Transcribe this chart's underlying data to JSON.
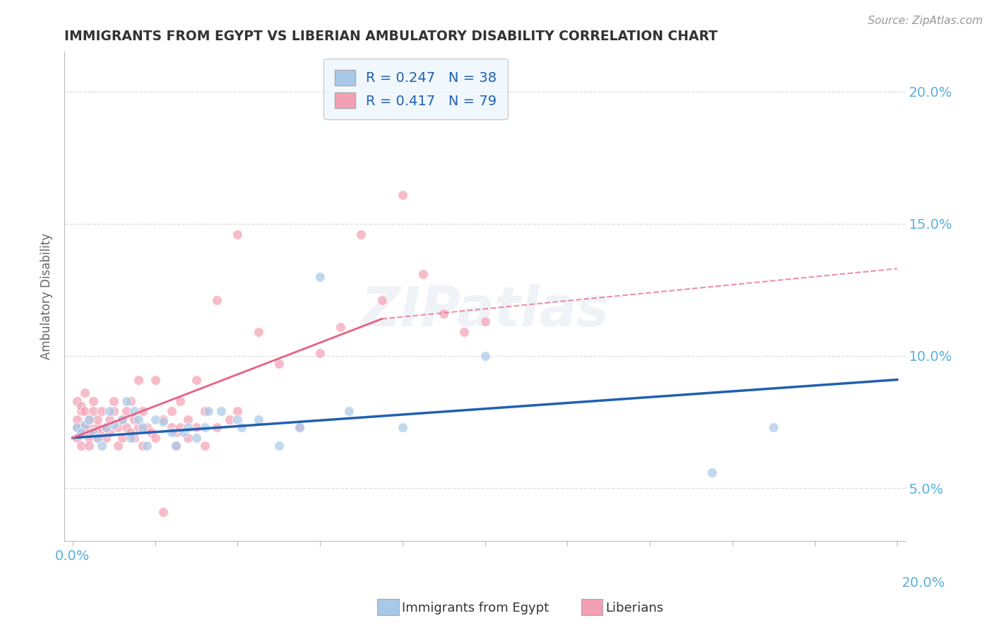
{
  "title": "IMMIGRANTS FROM EGYPT VS LIBERIAN AMBULATORY DISABILITY CORRELATION CHART",
  "source": "Source: ZipAtlas.com",
  "ylabel": "Ambulatory Disability",
  "watermark": "ZIPatlas",
  "legend_line1": "R = 0.247   N = 38",
  "legend_line2": "R = 0.417   N = 79",
  "blue_scatter": [
    [
      0.001,
      0.073
    ],
    [
      0.002,
      0.071
    ],
    [
      0.003,
      0.074
    ],
    [
      0.004,
      0.076
    ],
    [
      0.005,
      0.071
    ],
    [
      0.006,
      0.069
    ],
    [
      0.007,
      0.066
    ],
    [
      0.008,
      0.073
    ],
    [
      0.009,
      0.079
    ],
    [
      0.01,
      0.074
    ],
    [
      0.012,
      0.076
    ],
    [
      0.013,
      0.083
    ],
    [
      0.014,
      0.069
    ],
    [
      0.015,
      0.079
    ],
    [
      0.016,
      0.076
    ],
    [
      0.017,
      0.073
    ],
    [
      0.018,
      0.066
    ],
    [
      0.02,
      0.076
    ],
    [
      0.022,
      0.075
    ],
    [
      0.024,
      0.071
    ],
    [
      0.025,
      0.066
    ],
    [
      0.027,
      0.071
    ],
    [
      0.028,
      0.073
    ],
    [
      0.03,
      0.069
    ],
    [
      0.032,
      0.073
    ],
    [
      0.033,
      0.079
    ],
    [
      0.036,
      0.079
    ],
    [
      0.04,
      0.076
    ],
    [
      0.041,
      0.073
    ],
    [
      0.045,
      0.076
    ],
    [
      0.05,
      0.066
    ],
    [
      0.055,
      0.073
    ],
    [
      0.06,
      0.13
    ],
    [
      0.067,
      0.079
    ],
    [
      0.08,
      0.073
    ],
    [
      0.1,
      0.1
    ],
    [
      0.155,
      0.056
    ],
    [
      0.17,
      0.073
    ]
  ],
  "pink_scatter": [
    [
      0.001,
      0.073
    ],
    [
      0.001,
      0.083
    ],
    [
      0.001,
      0.069
    ],
    [
      0.001,
      0.076
    ],
    [
      0.002,
      0.079
    ],
    [
      0.002,
      0.066
    ],
    [
      0.002,
      0.073
    ],
    [
      0.002,
      0.081
    ],
    [
      0.003,
      0.079
    ],
    [
      0.003,
      0.071
    ],
    [
      0.003,
      0.086
    ],
    [
      0.003,
      0.073
    ],
    [
      0.004,
      0.069
    ],
    [
      0.004,
      0.076
    ],
    [
      0.004,
      0.073
    ],
    [
      0.004,
      0.066
    ],
    [
      0.005,
      0.079
    ],
    [
      0.005,
      0.071
    ],
    [
      0.005,
      0.083
    ],
    [
      0.006,
      0.073
    ],
    [
      0.006,
      0.069
    ],
    [
      0.006,
      0.076
    ],
    [
      0.007,
      0.071
    ],
    [
      0.007,
      0.079
    ],
    [
      0.008,
      0.073
    ],
    [
      0.008,
      0.069
    ],
    [
      0.009,
      0.076
    ],
    [
      0.009,
      0.071
    ],
    [
      0.01,
      0.079
    ],
    [
      0.01,
      0.083
    ],
    [
      0.011,
      0.073
    ],
    [
      0.011,
      0.066
    ],
    [
      0.012,
      0.076
    ],
    [
      0.012,
      0.069
    ],
    [
      0.013,
      0.073
    ],
    [
      0.013,
      0.079
    ],
    [
      0.014,
      0.071
    ],
    [
      0.014,
      0.083
    ],
    [
      0.015,
      0.076
    ],
    [
      0.015,
      0.069
    ],
    [
      0.016,
      0.073
    ],
    [
      0.016,
      0.091
    ],
    [
      0.017,
      0.079
    ],
    [
      0.017,
      0.066
    ],
    [
      0.018,
      0.073
    ],
    [
      0.019,
      0.071
    ],
    [
      0.02,
      0.091
    ],
    [
      0.02,
      0.069
    ],
    [
      0.022,
      0.076
    ],
    [
      0.022,
      0.041
    ],
    [
      0.024,
      0.073
    ],
    [
      0.024,
      0.079
    ],
    [
      0.025,
      0.071
    ],
    [
      0.025,
      0.066
    ],
    [
      0.026,
      0.073
    ],
    [
      0.026,
      0.083
    ],
    [
      0.028,
      0.076
    ],
    [
      0.028,
      0.069
    ],
    [
      0.03,
      0.091
    ],
    [
      0.03,
      0.073
    ],
    [
      0.032,
      0.079
    ],
    [
      0.032,
      0.066
    ],
    [
      0.035,
      0.121
    ],
    [
      0.035,
      0.073
    ],
    [
      0.038,
      0.076
    ],
    [
      0.04,
      0.146
    ],
    [
      0.04,
      0.079
    ],
    [
      0.045,
      0.109
    ],
    [
      0.05,
      0.097
    ],
    [
      0.055,
      0.073
    ],
    [
      0.06,
      0.101
    ],
    [
      0.065,
      0.111
    ],
    [
      0.07,
      0.146
    ],
    [
      0.075,
      0.121
    ],
    [
      0.08,
      0.161
    ],
    [
      0.085,
      0.131
    ],
    [
      0.09,
      0.116
    ],
    [
      0.095,
      0.109
    ],
    [
      0.1,
      0.113
    ]
  ],
  "blue_line": {
    "x": [
      0.0,
      0.2
    ],
    "y": [
      0.069,
      0.091
    ]
  },
  "pink_line_solid": {
    "x": [
      0.0,
      0.075
    ],
    "y": [
      0.069,
      0.114
    ]
  },
  "pink_line_dashed": {
    "x": [
      0.075,
      0.2
    ],
    "y": [
      0.114,
      0.133
    ]
  },
  "xlim": [
    -0.002,
    0.202
  ],
  "ylim": [
    0.03,
    0.215
  ],
  "yticks": [
    0.05,
    0.1,
    0.15,
    0.2
  ],
  "ytick_labels": [
    "5.0%",
    "10.0%",
    "15.0%",
    "20.0%"
  ],
  "xticks": [
    0.0,
    0.02,
    0.04,
    0.06,
    0.08,
    0.1,
    0.12,
    0.14,
    0.16,
    0.18,
    0.2
  ],
  "blue_color": "#a8c8e8",
  "pink_color": "#f4a0b4",
  "blue_line_color": "#2060b0",
  "pink_line_color": "#e86080",
  "grid_color": "#dddddd",
  "title_color": "#333333",
  "axis_label_color": "#666666",
  "tick_color": "#5ab0e0",
  "source_color": "#999999",
  "legend_box_color": "#edf6fd",
  "legend_border_color": "#c0c0c0",
  "background_color": "#ffffff"
}
